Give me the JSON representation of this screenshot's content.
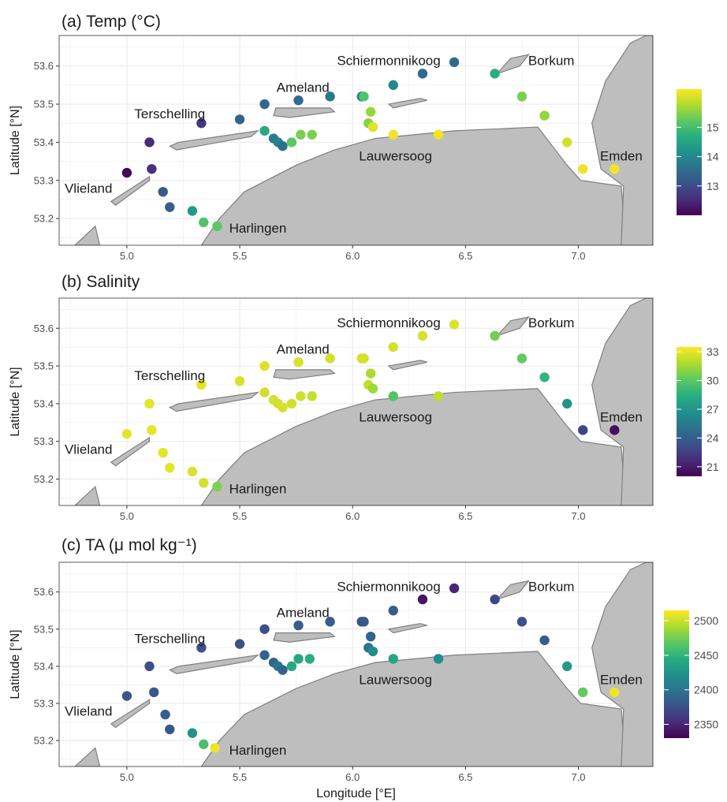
{
  "chart_data": [
    {
      "type": "scatter",
      "title": "(a) Temp (°C)",
      "ylabel": "Latitude [°N]",
      "xlabel": "",
      "xlim": [
        4.7,
        7.33
      ],
      "ylim": [
        53.13,
        53.68
      ],
      "xticks": [
        "5.0",
        "5.5",
        "6.0",
        "6.5",
        "7.0"
      ],
      "yticks": [
        "53.2",
        "53.3",
        "53.4",
        "53.5",
        "53.6"
      ],
      "color_scale": {
        "min": 12.0,
        "max": 16.3,
        "ticks": [
          "13",
          "14",
          "15"
        ]
      },
      "places": [
        "Schiermonnikoog",
        "Borkum",
        "Ameland",
        "Terschelling",
        "Lauwersoog",
        "Emden",
        "Vlieland",
        "Harlingen"
      ],
      "points": [
        {
          "lon": 5.0,
          "lat": 53.32,
          "value": 12.1
        },
        {
          "lon": 5.11,
          "lat": 53.33,
          "value": 12.6
        },
        {
          "lon": 5.16,
          "lat": 53.27,
          "value": 13.2
        },
        {
          "lon": 5.19,
          "lat": 53.23,
          "value": 13.3
        },
        {
          "lon": 5.29,
          "lat": 53.22,
          "value": 14.3
        },
        {
          "lon": 5.34,
          "lat": 53.19,
          "value": 15.1
        },
        {
          "lon": 5.4,
          "lat": 53.18,
          "value": 15.2
        },
        {
          "lon": 5.1,
          "lat": 53.4,
          "value": 12.5
        },
        {
          "lon": 5.33,
          "lat": 53.45,
          "value": 12.7
        },
        {
          "lon": 5.5,
          "lat": 53.46,
          "value": 13.4
        },
        {
          "lon": 5.61,
          "lat": 53.43,
          "value": 14.6
        },
        {
          "lon": 5.65,
          "lat": 53.41,
          "value": 13.8
        },
        {
          "lon": 5.67,
          "lat": 53.4,
          "value": 13.9
        },
        {
          "lon": 5.69,
          "lat": 53.39,
          "value": 13.6
        },
        {
          "lon": 5.73,
          "lat": 53.4,
          "value": 15.2
        },
        {
          "lon": 5.77,
          "lat": 53.42,
          "value": 15.4
        },
        {
          "lon": 5.82,
          "lat": 53.42,
          "value": 15.4
        },
        {
          "lon": 5.61,
          "lat": 53.5,
          "value": 13.4
        },
        {
          "lon": 5.76,
          "lat": 53.51,
          "value": 13.5
        },
        {
          "lon": 5.9,
          "lat": 53.52,
          "value": 13.7
        },
        {
          "lon": 6.04,
          "lat": 53.52,
          "value": 14.0
        },
        {
          "lon": 6.05,
          "lat": 53.52,
          "value": 15.1
        },
        {
          "lon": 6.08,
          "lat": 53.48,
          "value": 15.6
        },
        {
          "lon": 6.07,
          "lat": 53.45,
          "value": 15.5
        },
        {
          "lon": 6.09,
          "lat": 53.44,
          "value": 16.1
        },
        {
          "lon": 6.18,
          "lat": 53.42,
          "value": 16.2
        },
        {
          "lon": 6.38,
          "lat": 53.42,
          "value": 16.2
        },
        {
          "lon": 6.18,
          "lat": 53.55,
          "value": 14.0
        },
        {
          "lon": 6.31,
          "lat": 53.58,
          "value": 13.5
        },
        {
          "lon": 6.45,
          "lat": 53.61,
          "value": 13.5
        },
        {
          "lon": 6.63,
          "lat": 53.58,
          "value": 14.7
        },
        {
          "lon": 6.75,
          "lat": 53.52,
          "value": 15.4
        },
        {
          "lon": 6.85,
          "lat": 53.47,
          "value": 15.6
        },
        {
          "lon": 6.95,
          "lat": 53.4,
          "value": 16.0
        },
        {
          "lon": 7.02,
          "lat": 53.33,
          "value": 16.2
        },
        {
          "lon": 7.16,
          "lat": 53.33,
          "value": 16.2
        }
      ]
    },
    {
      "type": "scatter",
      "title": "(b) Salinity",
      "ylabel": "Latitude [°N]",
      "xlabel": "",
      "xlim": [
        4.7,
        7.33
      ],
      "ylim": [
        53.13,
        53.68
      ],
      "xticks": [
        "5.0",
        "5.5",
        "6.0",
        "6.5",
        "7.0"
      ],
      "yticks": [
        "53.2",
        "53.3",
        "53.4",
        "53.5",
        "53.6"
      ],
      "color_scale": {
        "min": 20.0,
        "max": 33.5,
        "ticks": [
          "21",
          "24",
          "27",
          "30",
          "33"
        ]
      },
      "places": [
        "Schiermonnikoog",
        "Borkum",
        "Ameland",
        "Terschelling",
        "Lauwersoog",
        "Emden",
        "Vlieland",
        "Harlingen"
      ],
      "points": [
        {
          "lon": 5.0,
          "lat": 53.32,
          "value": 33.0
        },
        {
          "lon": 5.11,
          "lat": 53.33,
          "value": 33.0
        },
        {
          "lon": 5.16,
          "lat": 53.27,
          "value": 33.0
        },
        {
          "lon": 5.19,
          "lat": 53.23,
          "value": 33.0
        },
        {
          "lon": 5.29,
          "lat": 53.22,
          "value": 32.8
        },
        {
          "lon": 5.34,
          "lat": 53.19,
          "value": 32.6
        },
        {
          "lon": 5.4,
          "lat": 53.18,
          "value": 30.8
        },
        {
          "lon": 5.1,
          "lat": 53.4,
          "value": 33.0
        },
        {
          "lon": 5.33,
          "lat": 53.45,
          "value": 32.9
        },
        {
          "lon": 5.5,
          "lat": 53.46,
          "value": 32.7
        },
        {
          "lon": 5.61,
          "lat": 53.43,
          "value": 32.5
        },
        {
          "lon": 5.65,
          "lat": 53.41,
          "value": 32.6
        },
        {
          "lon": 5.67,
          "lat": 53.4,
          "value": 32.6
        },
        {
          "lon": 5.69,
          "lat": 53.39,
          "value": 32.6
        },
        {
          "lon": 5.73,
          "lat": 53.4,
          "value": 32.5
        },
        {
          "lon": 5.77,
          "lat": 53.42,
          "value": 32.5
        },
        {
          "lon": 5.82,
          "lat": 53.42,
          "value": 32.3
        },
        {
          "lon": 5.61,
          "lat": 53.5,
          "value": 32.8
        },
        {
          "lon": 5.76,
          "lat": 53.51,
          "value": 32.7
        },
        {
          "lon": 5.9,
          "lat": 53.52,
          "value": 32.6
        },
        {
          "lon": 6.04,
          "lat": 53.52,
          "value": 32.6
        },
        {
          "lon": 6.05,
          "lat": 53.52,
          "value": 32.6
        },
        {
          "lon": 6.08,
          "lat": 53.48,
          "value": 31.8
        },
        {
          "lon": 6.07,
          "lat": 53.45,
          "value": 32.2
        },
        {
          "lon": 6.09,
          "lat": 53.44,
          "value": 31.5
        },
        {
          "lon": 6.18,
          "lat": 53.42,
          "value": 29.8
        },
        {
          "lon": 6.38,
          "lat": 53.42,
          "value": 32.2
        },
        {
          "lon": 6.18,
          "lat": 53.55,
          "value": 32.6
        },
        {
          "lon": 6.31,
          "lat": 53.58,
          "value": 32.7
        },
        {
          "lon": 6.45,
          "lat": 53.61,
          "value": 32.8
        },
        {
          "lon": 6.63,
          "lat": 53.58,
          "value": 30.6
        },
        {
          "lon": 6.75,
          "lat": 53.52,
          "value": 30.2
        },
        {
          "lon": 6.85,
          "lat": 53.47,
          "value": 28.8
        },
        {
          "lon": 6.95,
          "lat": 53.4,
          "value": 26.8
        },
        {
          "lon": 7.02,
          "lat": 53.33,
          "value": 22.8
        },
        {
          "lon": 7.16,
          "lat": 53.33,
          "value": 20.5
        }
      ]
    },
    {
      "type": "scatter",
      "title": "(c) TA  (μ mol kg⁻¹)",
      "ylabel": "Latitude [°N]",
      "xlabel": "Longitude [°E]",
      "xlim": [
        4.7,
        7.33
      ],
      "ylim": [
        53.13,
        53.68
      ],
      "xticks": [
        "5.0",
        "5.5",
        "6.0",
        "6.5",
        "7.0"
      ],
      "yticks": [
        "53.2",
        "53.3",
        "53.4",
        "53.5",
        "53.6"
      ],
      "color_scale": {
        "min": 2330,
        "max": 2515,
        "ticks": [
          "2350",
          "2400",
          "2450",
          "2500"
        ]
      },
      "places": [
        "Schiermonnikoog",
        "Borkum",
        "Ameland",
        "Terschelling",
        "Lauwersoog",
        "Emden",
        "Vlieland",
        "Harlingen"
      ],
      "points": [
        {
          "lon": 5.0,
          "lat": 53.32,
          "value": 2380
        },
        {
          "lon": 5.12,
          "lat": 53.33,
          "value": 2380
        },
        {
          "lon": 5.17,
          "lat": 53.27,
          "value": 2385
        },
        {
          "lon": 5.19,
          "lat": 53.23,
          "value": 2380
        },
        {
          "lon": 5.29,
          "lat": 53.22,
          "value": 2425
        },
        {
          "lon": 5.34,
          "lat": 53.19,
          "value": 2460
        },
        {
          "lon": 5.39,
          "lat": 53.18,
          "value": 2510
        },
        {
          "lon": 5.1,
          "lat": 53.4,
          "value": 2375
        },
        {
          "lon": 5.33,
          "lat": 53.45,
          "value": 2375
        },
        {
          "lon": 5.5,
          "lat": 53.46,
          "value": 2375
        },
        {
          "lon": 5.61,
          "lat": 53.43,
          "value": 2390
        },
        {
          "lon": 5.65,
          "lat": 53.41,
          "value": 2390
        },
        {
          "lon": 5.67,
          "lat": 53.4,
          "value": 2400
        },
        {
          "lon": 5.69,
          "lat": 53.39,
          "value": 2390
        },
        {
          "lon": 5.73,
          "lat": 53.4,
          "value": 2440
        },
        {
          "lon": 5.76,
          "lat": 53.42,
          "value": 2440
        },
        {
          "lon": 5.81,
          "lat": 53.42,
          "value": 2445
        },
        {
          "lon": 5.61,
          "lat": 53.5,
          "value": 2375
        },
        {
          "lon": 5.76,
          "lat": 53.51,
          "value": 2385
        },
        {
          "lon": 5.9,
          "lat": 53.52,
          "value": 2385
        },
        {
          "lon": 6.04,
          "lat": 53.52,
          "value": 2375
        },
        {
          "lon": 6.05,
          "lat": 53.52,
          "value": 2380
        },
        {
          "lon": 6.08,
          "lat": 53.48,
          "value": 2390
        },
        {
          "lon": 6.07,
          "lat": 53.45,
          "value": 2400
        },
        {
          "lon": 6.09,
          "lat": 53.44,
          "value": 2420
        },
        {
          "lon": 6.18,
          "lat": 53.42,
          "value": 2440
        },
        {
          "lon": 6.38,
          "lat": 53.42,
          "value": 2420
        },
        {
          "lon": 6.18,
          "lat": 53.55,
          "value": 2385
        },
        {
          "lon": 6.31,
          "lat": 53.58,
          "value": 2340
        },
        {
          "lon": 6.45,
          "lat": 53.61,
          "value": 2350
        },
        {
          "lon": 6.63,
          "lat": 53.58,
          "value": 2370
        },
        {
          "lon": 6.75,
          "lat": 53.52,
          "value": 2375
        },
        {
          "lon": 6.85,
          "lat": 53.47,
          "value": 2385
        },
        {
          "lon": 6.95,
          "lat": 53.4,
          "value": 2430
        },
        {
          "lon": 7.02,
          "lat": 53.33,
          "value": 2470
        },
        {
          "lon": 7.16,
          "lat": 53.33,
          "value": 2510
        }
      ]
    }
  ]
}
